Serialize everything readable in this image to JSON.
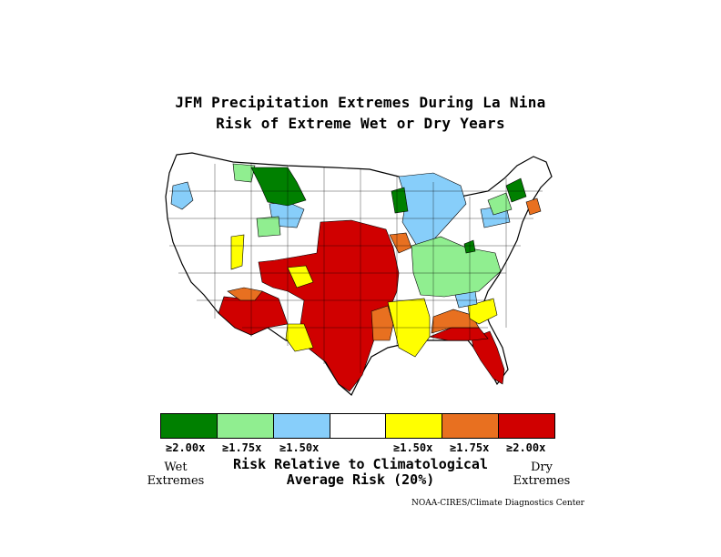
{
  "title_line1": "JFM Precipitation Extremes During La Nina",
  "title_line2": "Risk of Extreme Wet or Dry Years",
  "legend": {
    "colors": [
      "#008000",
      "#90ee90",
      "#87cefa",
      "#ffffff",
      "#ffff00",
      "#e87020",
      "#d00000"
    ],
    "labels": [
      "≥2.00x",
      "≥1.75x",
      "≥1.50x",
      "≥1.50x",
      "≥1.75x",
      "≥2.00x"
    ],
    "wet_line1": "Wet",
    "wet_line2": "Extremes",
    "dry_line1": "Dry",
    "dry_line2": "Extremes",
    "caption_line1": "Risk Relative to Climatological",
    "caption_line2": "Average Risk (20%)"
  },
  "credit": "NOAA-CIRES/Climate Diagnostics Center",
  "regions": [
    {
      "name": "montana-north-wet",
      "category": "wet-2.00"
    },
    {
      "name": "minnesota-wet",
      "category": "wet-2.00"
    },
    {
      "name": "maine-wet",
      "category": "wet-2.00"
    },
    {
      "name": "ohio-valley-wet",
      "category": "wet-1.75"
    },
    {
      "name": "great-lakes-wet",
      "category": "wet-1.50"
    },
    {
      "name": "southern-plains-dry",
      "category": "dry-2.00"
    },
    {
      "name": "southwest-dry",
      "category": "dry-2.00"
    },
    {
      "name": "florida-dry",
      "category": "dry-2.00"
    },
    {
      "name": "gulf-coast-dry",
      "category": "dry-1.75"
    },
    {
      "name": "southeast-dry",
      "category": "dry-1.50"
    }
  ]
}
